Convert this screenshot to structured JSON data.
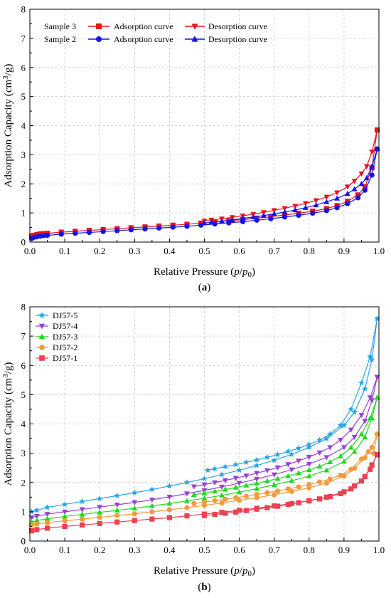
{
  "chart_data": [
    {
      "panel_label": "(a)",
      "panel_letter": "a",
      "type": "line",
      "xlabel": "Relative Pressure (p/p0)",
      "xlabel_parts": {
        "pre": "Relative Pressure (",
        "p": "p",
        "slash": "/",
        "p0": "p",
        "sub": "0",
        "post": ")"
      },
      "ylabel": "Adsorption Capacity (cm³/g)",
      "ylabel_parts": {
        "pre": "Adsorption Capacity (cm",
        "sup": "3",
        "post": "/g)"
      },
      "xlim": [
        0.0,
        1.0
      ],
      "ylim": [
        0,
        8
      ],
      "xticks": [
        "0.0",
        "0.1",
        "0.2",
        "0.3",
        "0.4",
        "0.5",
        "0.6",
        "0.7",
        "0.8",
        "0.9",
        "1.0"
      ],
      "yticks": [
        "0",
        "1",
        "2",
        "3",
        "4",
        "5",
        "6",
        "7",
        "8"
      ],
      "grid": true,
      "legend_position": "top-left",
      "legend_groups": [
        {
          "sample": "Sample 3",
          "color": "#e8141e",
          "adsorption": "Adsorption curve",
          "desorption": "Desorption curve",
          "ads_marker": "square",
          "des_marker": "triangle-down"
        },
        {
          "sample": "Sample 2",
          "color": "#1414e6",
          "adsorption": "Adsorption curve",
          "desorption": "Desorption curve",
          "ads_marker": "circle",
          "des_marker": "triangle-up"
        }
      ],
      "series": [
        {
          "group": 0,
          "kind": "adsorption",
          "color": "#e8141e",
          "marker": "square",
          "x": [
            0.005,
            0.01,
            0.02,
            0.03,
            0.04,
            0.05,
            0.09,
            0.13,
            0.17,
            0.21,
            0.25,
            0.29,
            0.33,
            0.37,
            0.41,
            0.45,
            0.49,
            0.53,
            0.57,
            0.61,
            0.65,
            0.69,
            0.73,
            0.77,
            0.81,
            0.85,
            0.88,
            0.91,
            0.94,
            0.96,
            0.98,
            0.995
          ],
          "y": [
            0.2,
            0.23,
            0.26,
            0.28,
            0.29,
            0.3,
            0.34,
            0.37,
            0.4,
            0.43,
            0.46,
            0.49,
            0.52,
            0.55,
            0.58,
            0.61,
            0.65,
            0.69,
            0.73,
            0.77,
            0.82,
            0.87,
            0.93,
            0.99,
            1.06,
            1.15,
            1.25,
            1.4,
            1.62,
            1.9,
            2.55,
            3.85
          ]
        },
        {
          "group": 0,
          "kind": "desorption",
          "color": "#e8141e",
          "marker": "triangle-down",
          "x": [
            0.995,
            0.98,
            0.965,
            0.95,
            0.93,
            0.91,
            0.88,
            0.85,
            0.82,
            0.79,
            0.76,
            0.73,
            0.7,
            0.67,
            0.64,
            0.61,
            0.58,
            0.55,
            0.52,
            0.5
          ],
          "y": [
            3.85,
            3.1,
            2.6,
            2.35,
            2.1,
            1.9,
            1.7,
            1.55,
            1.43,
            1.33,
            1.24,
            1.16,
            1.09,
            1.02,
            0.96,
            0.9,
            0.85,
            0.8,
            0.76,
            0.73
          ]
        },
        {
          "group": 1,
          "kind": "adsorption",
          "color": "#1414e6",
          "marker": "circle",
          "x": [
            0.005,
            0.01,
            0.02,
            0.03,
            0.04,
            0.05,
            0.09,
            0.13,
            0.17,
            0.21,
            0.25,
            0.29,
            0.33,
            0.37,
            0.41,
            0.45,
            0.49,
            0.53,
            0.57,
            0.61,
            0.65,
            0.69,
            0.73,
            0.77,
            0.81,
            0.85,
            0.88,
            0.91,
            0.94,
            0.96,
            0.98,
            0.995
          ],
          "y": [
            0.12,
            0.15,
            0.18,
            0.2,
            0.22,
            0.23,
            0.27,
            0.3,
            0.33,
            0.36,
            0.39,
            0.42,
            0.45,
            0.48,
            0.51,
            0.54,
            0.58,
            0.62,
            0.66,
            0.7,
            0.75,
            0.8,
            0.86,
            0.92,
            0.99,
            1.08,
            1.18,
            1.32,
            1.52,
            1.78,
            2.3,
            3.2
          ]
        },
        {
          "group": 1,
          "kind": "desorption",
          "color": "#1414e6",
          "marker": "triangle-up",
          "x": [
            0.995,
            0.98,
            0.965,
            0.95,
            0.93,
            0.91,
            0.88,
            0.85,
            0.82,
            0.79,
            0.76,
            0.73,
            0.7,
            0.67,
            0.64,
            0.61,
            0.58,
            0.55,
            0.52,
            0.5
          ],
          "y": [
            3.2,
            2.6,
            2.2,
            2.0,
            1.82,
            1.66,
            1.5,
            1.38,
            1.27,
            1.18,
            1.1,
            1.03,
            0.97,
            0.91,
            0.86,
            0.81,
            0.76,
            0.72,
            0.68,
            0.65
          ]
        }
      ]
    },
    {
      "panel_label": "(b)",
      "panel_letter": "b",
      "type": "line",
      "xlabel": "Relative Pressure (p/p0)",
      "xlabel_parts": {
        "pre": "Relative Pressure (",
        "p": "p",
        "slash": "/",
        "p0": "p",
        "sub": "0",
        "post": ")"
      },
      "ylabel": "Adsorption Capacity (cm³/g)",
      "ylabel_parts": {
        "pre": "Adsorption Capacity (cm",
        "sup": "3",
        "post": "/g)"
      },
      "xlim": [
        0.0,
        1.0
      ],
      "ylim": [
        0,
        8
      ],
      "xticks": [
        "0.0",
        "0.1",
        "0.2",
        "0.3",
        "0.4",
        "0.5",
        "0.6",
        "0.7",
        "0.8",
        "0.9",
        "1.0"
      ],
      "yticks": [
        "0",
        "1",
        "2",
        "3",
        "4",
        "5",
        "6",
        "7",
        "8"
      ],
      "grid": true,
      "legend_position": "top-left",
      "legend": [
        {
          "name": "DJ57-5",
          "color": "#2aa4e6",
          "marker": "star"
        },
        {
          "name": "DJ57-4",
          "color": "#9a40d8",
          "marker": "triangle-down"
        },
        {
          "name": "DJ57-3",
          "color": "#22d822",
          "marker": "triangle-up"
        },
        {
          "name": "DJ57-2",
          "color": "#f59a3c",
          "marker": "circle"
        },
        {
          "name": "DJ57-1",
          "color": "#ec4150",
          "marker": "square"
        }
      ],
      "series": [
        {
          "name": "DJ57-5",
          "color": "#2aa4e6",
          "marker": "star",
          "kind": "adsorption",
          "x": [
            0.005,
            0.02,
            0.05,
            0.1,
            0.15,
            0.2,
            0.25,
            0.3,
            0.35,
            0.4,
            0.45,
            0.5,
            0.55,
            0.6,
            0.65,
            0.7,
            0.75,
            0.8,
            0.85,
            0.9,
            0.93,
            0.96,
            0.98,
            0.995
          ],
          "y": [
            1.0,
            1.05,
            1.15,
            1.25,
            1.35,
            1.45,
            1.55,
            1.65,
            1.76,
            1.88,
            2.0,
            2.13,
            2.27,
            2.42,
            2.58,
            2.76,
            2.96,
            3.2,
            3.5,
            3.95,
            4.4,
            5.2,
            6.2,
            7.6
          ]
        },
        {
          "name": "DJ57-5",
          "color": "#2aa4e6",
          "marker": "star",
          "kind": "desorption",
          "x": [
            0.995,
            0.975,
            0.95,
            0.92,
            0.89,
            0.86,
            0.83,
            0.8,
            0.77,
            0.74,
            0.71,
            0.68,
            0.65,
            0.62,
            0.59,
            0.56,
            0.53,
            0.51
          ],
          "y": [
            7.6,
            6.3,
            5.4,
            4.5,
            3.95,
            3.65,
            3.45,
            3.3,
            3.17,
            3.06,
            2.95,
            2.86,
            2.77,
            2.69,
            2.61,
            2.54,
            2.47,
            2.42
          ]
        },
        {
          "name": "DJ57-4",
          "color": "#9a40d8",
          "marker": "triangle-down",
          "kind": "adsorption",
          "x": [
            0.005,
            0.02,
            0.05,
            0.1,
            0.15,
            0.2,
            0.25,
            0.3,
            0.35,
            0.4,
            0.45,
            0.5,
            0.55,
            0.6,
            0.65,
            0.7,
            0.75,
            0.8,
            0.85,
            0.9,
            0.93,
            0.96,
            0.98,
            0.995
          ],
          "y": [
            0.8,
            0.85,
            0.92,
            1.0,
            1.08,
            1.16,
            1.24,
            1.32,
            1.41,
            1.51,
            1.62,
            1.73,
            1.85,
            1.98,
            2.12,
            2.27,
            2.44,
            2.63,
            2.86,
            3.2,
            3.55,
            4.1,
            4.8,
            5.6
          ]
        },
        {
          "name": "DJ57-4",
          "color": "#9a40d8",
          "marker": "triangle-down",
          "kind": "desorption",
          "x": [
            0.995,
            0.975,
            0.95,
            0.92,
            0.89,
            0.86,
            0.83,
            0.8,
            0.77,
            0.74,
            0.71,
            0.68,
            0.65,
            0.62,
            0.59,
            0.56,
            0.53,
            0.5,
            0.47
          ],
          "y": [
            5.6,
            4.9,
            4.3,
            3.8,
            3.45,
            3.2,
            3.02,
            2.87,
            2.74,
            2.62,
            2.51,
            2.41,
            2.32,
            2.23,
            2.15,
            2.07,
            2.0,
            1.93,
            1.86
          ]
        },
        {
          "name": "DJ57-3",
          "color": "#22d822",
          "marker": "triangle-up",
          "kind": "adsorption",
          "x": [
            0.005,
            0.02,
            0.05,
            0.1,
            0.15,
            0.2,
            0.25,
            0.3,
            0.35,
            0.4,
            0.45,
            0.5,
            0.55,
            0.6,
            0.65,
            0.7,
            0.75,
            0.8,
            0.85,
            0.9,
            0.93,
            0.96,
            0.98,
            0.995
          ],
          "y": [
            0.65,
            0.7,
            0.76,
            0.84,
            0.91,
            0.98,
            1.05,
            1.12,
            1.2,
            1.28,
            1.37,
            1.46,
            1.56,
            1.67,
            1.79,
            1.92,
            2.06,
            2.22,
            2.42,
            2.72,
            3.05,
            3.55,
            4.2,
            4.9
          ]
        },
        {
          "name": "DJ57-3",
          "color": "#22d822",
          "marker": "triangle-up",
          "kind": "desorption",
          "x": [
            0.995,
            0.975,
            0.95,
            0.92,
            0.89,
            0.86,
            0.83,
            0.8,
            0.77,
            0.74,
            0.71,
            0.68,
            0.65,
            0.62,
            0.59,
            0.56,
            0.53,
            0.5,
            0.47
          ],
          "y": [
            4.9,
            4.2,
            3.65,
            3.2,
            2.9,
            2.7,
            2.55,
            2.43,
            2.32,
            2.22,
            2.13,
            2.05,
            1.97,
            1.9,
            1.83,
            1.76,
            1.7,
            1.64,
            1.58
          ]
        },
        {
          "name": "DJ57-2",
          "color": "#f59a3c",
          "marker": "circle",
          "kind": "adsorption",
          "x": [
            0.005,
            0.02,
            0.05,
            0.1,
            0.15,
            0.2,
            0.25,
            0.3,
            0.35,
            0.4,
            0.45,
            0.5,
            0.55,
            0.6,
            0.65,
            0.7,
            0.75,
            0.8,
            0.85,
            0.9,
            0.93,
            0.96,
            0.98,
            0.995
          ],
          "y": [
            0.55,
            0.58,
            0.63,
            0.69,
            0.75,
            0.81,
            0.87,
            0.93,
            1.0,
            1.07,
            1.14,
            1.22,
            1.3,
            1.39,
            1.48,
            1.58,
            1.69,
            1.82,
            1.98,
            2.22,
            2.48,
            2.85,
            3.2,
            3.65
          ]
        },
        {
          "name": "DJ57-2",
          "color": "#f59a3c",
          "marker": "circle",
          "kind": "desorption",
          "x": [
            0.995,
            0.985,
            0.97,
            0.95,
            0.92,
            0.89,
            0.86,
            0.83,
            0.8,
            0.77,
            0.74,
            0.71,
            0.68,
            0.65,
            0.62,
            0.59,
            0.56,
            0.53,
            0.5,
            0.47
          ],
          "y": [
            3.65,
            3.0,
            3.05,
            2.8,
            2.45,
            2.25,
            2.12,
            2.02,
            1.93,
            1.85,
            1.78,
            1.71,
            1.65,
            1.59,
            1.53,
            1.48,
            1.43,
            1.38,
            1.33,
            1.28
          ]
        },
        {
          "name": "DJ57-1",
          "color": "#ec4150",
          "marker": "square",
          "kind": "adsorption",
          "x": [
            0.005,
            0.02,
            0.05,
            0.1,
            0.15,
            0.2,
            0.25,
            0.3,
            0.35,
            0.4,
            0.45,
            0.5,
            0.55,
            0.6,
            0.65,
            0.7,
            0.75,
            0.8,
            0.85,
            0.9,
            0.93,
            0.96,
            0.98,
            0.995
          ],
          "y": [
            0.35,
            0.39,
            0.44,
            0.5,
            0.55,
            0.6,
            0.65,
            0.7,
            0.75,
            0.8,
            0.86,
            0.92,
            0.98,
            1.05,
            1.12,
            1.2,
            1.28,
            1.38,
            1.5,
            1.68,
            1.88,
            2.2,
            2.6,
            2.95
          ]
        },
        {
          "name": "DJ57-1",
          "color": "#ec4150",
          "marker": "square",
          "kind": "desorption",
          "x": [
            0.995,
            0.975,
            0.95,
            0.92,
            0.89,
            0.86,
            0.83,
            0.8,
            0.77,
            0.74,
            0.71,
            0.68,
            0.65,
            0.62,
            0.59,
            0.56,
            0.53,
            0.5
          ],
          "y": [
            2.95,
            2.45,
            2.05,
            1.78,
            1.62,
            1.52,
            1.44,
            1.37,
            1.31,
            1.25,
            1.19,
            1.14,
            1.09,
            1.04,
            0.99,
            0.95,
            0.91,
            0.87
          ]
        }
      ]
    }
  ]
}
